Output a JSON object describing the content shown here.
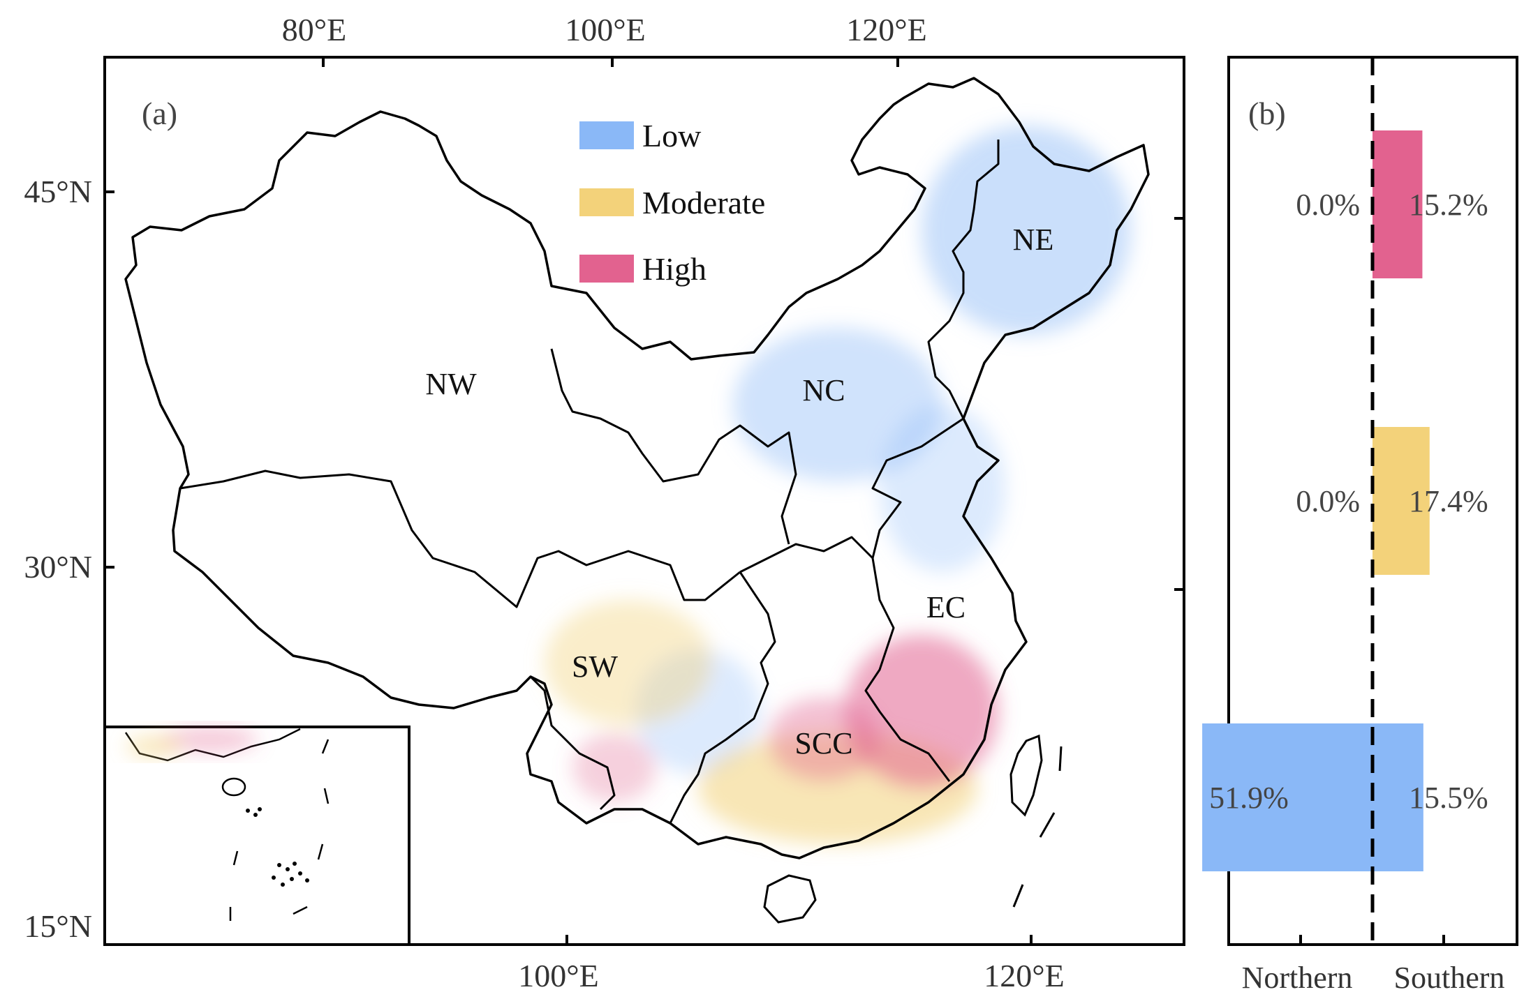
{
  "panel_a": {
    "label": "(a)",
    "top_ticks": [
      "80°E",
      "100°E",
      "120°E"
    ],
    "bottom_ticks": [
      "100°E",
      "120°E"
    ],
    "left_ticks": [
      "45°N",
      "30°N",
      "15°N"
    ],
    "legend": [
      {
        "label": "Low",
        "color": "#8ab8f7"
      },
      {
        "label": "Moderate",
        "color": "#f3d27a"
      },
      {
        "label": "High",
        "color": "#e2628f"
      }
    ],
    "regions": [
      "NE",
      "NW",
      "NC",
      "SW",
      "EC",
      "SCC"
    ]
  },
  "panel_b": {
    "label": "(b)",
    "x_labels": [
      "Northern",
      "Southern"
    ]
  },
  "chart_data": {
    "type": "bar",
    "orientation": "horizontal-diverging",
    "categories": [
      "High",
      "Moderate",
      "Low"
    ],
    "series": [
      {
        "name": "Northern",
        "values": [
          0.0,
          0.0,
          51.9
        ],
        "labels": [
          "0.0%",
          "0.0%",
          "51.9%"
        ]
      },
      {
        "name": "Southern",
        "values": [
          15.2,
          17.4,
          15.5
        ],
        "labels": [
          "15.2%",
          "17.4%",
          "15.5%"
        ]
      }
    ],
    "colors": {
      "High": "#e2628f",
      "Moderate": "#f3d27a",
      "Low": "#8ab8f7"
    },
    "xlim": [
      0,
      100
    ]
  }
}
